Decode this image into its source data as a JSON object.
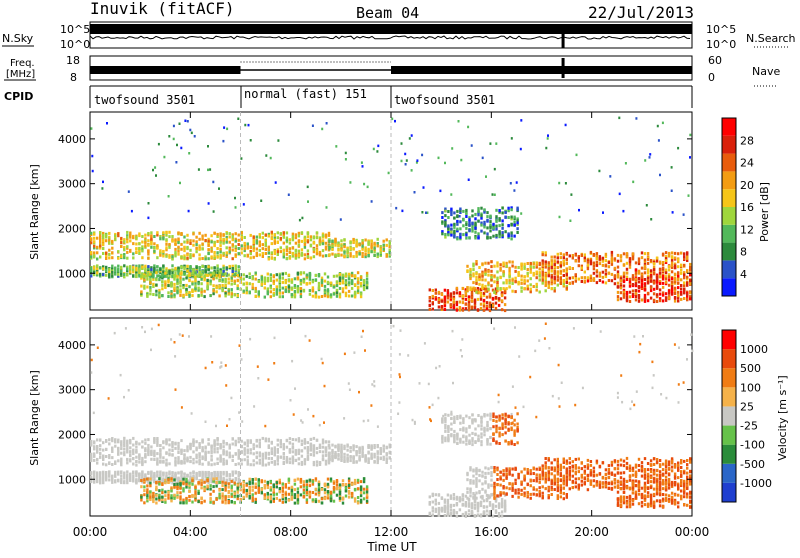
{
  "header": {
    "site": "Inuvik (fitACF)",
    "beam": "Beam 04",
    "date": "22/Jul/2013"
  },
  "top_panels": {
    "nsky_label": "N.Sky",
    "nsky_ticks": [
      "10^5",
      "10^0"
    ],
    "nsearch_label": "N.Search",
    "nsearch_ticks": [
      "10^5",
      "10^0"
    ],
    "freq_label_1": "Freq.",
    "freq_label_2": "[MHz]",
    "freq_ticks": [
      "18",
      "8"
    ],
    "nave_label": "Nave",
    "nave_ticks": [
      "60",
      "0"
    ],
    "cpid_label": "CPID",
    "cpid_segments": [
      {
        "label": "twofsound 3501",
        "start": 0,
        "end": 6
      },
      {
        "label": "normal (fast) 151",
        "start": 6,
        "end": 12
      },
      {
        "label": "twofsound 3501",
        "start": 12,
        "end": 24
      }
    ]
  },
  "x_axis": {
    "label": "Time UT",
    "ticks": [
      "00:00",
      "04:00",
      "08:00",
      "12:00",
      "16:00",
      "20:00",
      "00:00"
    ]
  },
  "chart_data": [
    {
      "type": "heatmap",
      "name": "power",
      "ylabel": "Slant Range [km]",
      "yticks": [
        "4000",
        "3000",
        "2000",
        "1000"
      ],
      "ylim": [
        180,
        4600
      ],
      "xlim_hours": [
        0,
        24
      ],
      "colorbar_label": "Power [dB]",
      "colorbar_ticks": [
        "28",
        "24",
        "20",
        "16",
        "12",
        "8",
        "4"
      ],
      "colorbar_colors": [
        "#0a1aff",
        "#2a52c8",
        "#2c8a3c",
        "#52b85a",
        "#9fd63c",
        "#f5c518",
        "#f39c12",
        "#e85c0c",
        "#d9200a",
        "#ff0000"
      ]
    },
    {
      "type": "heatmap",
      "name": "velocity",
      "ylabel": "Slant Range [km]",
      "yticks": [
        "4000",
        "3000",
        "2000",
        "1000"
      ],
      "ylim": [
        180,
        4600
      ],
      "xlim_hours": [
        0,
        24
      ],
      "colorbar_label": "Velocity [m s⁻¹]",
      "colorbar_ticks": [
        "1000",
        "500",
        "100",
        "25",
        "-25",
        "-100",
        "-500",
        "-1000"
      ],
      "colorbar_colors": [
        "#1f3fcf",
        "#2a66c8",
        "#2a8c3a",
        "#66c24a",
        "#c8c8c4",
        "#f5b24a",
        "#f07c14",
        "#e84a0c",
        "#ff0000"
      ]
    }
  ]
}
